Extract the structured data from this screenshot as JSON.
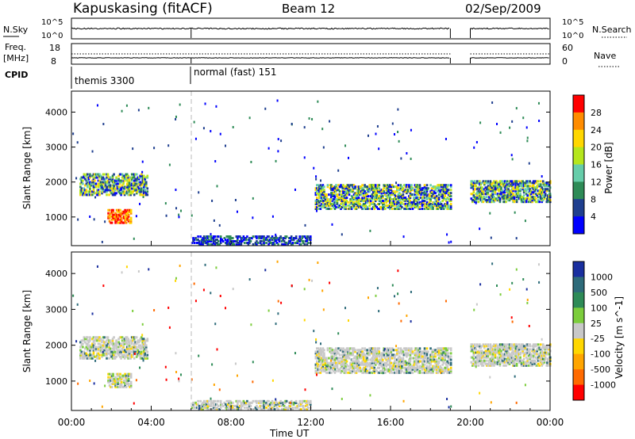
{
  "header": {
    "title": "Kapuskasing (fitACF)",
    "beam": "Beam 12",
    "date": "02/Sep/2009"
  },
  "top_panels": {
    "nsky_label": "N.Sky",
    "nsearch_label": "N.Search",
    "nsky_ticks": [
      "10^5",
      "10^0"
    ],
    "nsearch_ticks": [
      "10^5",
      "10^0"
    ],
    "freq_label_1": "Freq.",
    "freq_label_2": "[MHz]",
    "freq_ticks": [
      "18",
      "8"
    ],
    "nave_label": "Nave",
    "nave_ticks": [
      "60",
      "0"
    ],
    "cpid_label": "CPID",
    "cpid_segments": [
      {
        "label": "themis 3300",
        "start_hour": 0,
        "end_hour": 6
      },
      {
        "label": "normal (fast) 151",
        "start_hour": 6,
        "end_hour": 19
      }
    ],
    "data_gap_hours": [
      19,
      20
    ]
  },
  "chart_data": [
    {
      "type": "heatmap",
      "name": "power",
      "ylabel": "Slant Range [km]",
      "yticks": [
        1000,
        2000,
        3000,
        4000
      ],
      "ylim": [
        180,
        4600
      ],
      "xlim": [
        0,
        24
      ],
      "colorbar_label": "Power [dB]",
      "colorbar_ticks": [
        "4",
        "8",
        "12",
        "16",
        "20",
        "24",
        "28"
      ],
      "colors": [
        "#0000ff",
        "#1f3f8f",
        "#2e8b57",
        "#66cdaa",
        "#b5e61d",
        "#ffd700",
        "#ff8c00",
        "#ff0000"
      ],
      "regions": [
        {
          "t0": 0.4,
          "t1": 3.8,
          "r0": 1600,
          "r1": 2200,
          "level": "mid"
        },
        {
          "t0": 1.8,
          "t1": 3.0,
          "r0": 800,
          "r1": 1200,
          "level": "high"
        },
        {
          "t0": 12.2,
          "t1": 19.0,
          "r0": 1200,
          "r1": 1900,
          "level": "mid"
        },
        {
          "t0": 20.0,
          "t1": 24.0,
          "r0": 1400,
          "r1": 2000,
          "level": "mid"
        },
        {
          "t0": 6.0,
          "t1": 12.0,
          "r0": 180,
          "r1": 450,
          "level": "low"
        }
      ]
    },
    {
      "type": "heatmap",
      "name": "velocity",
      "ylabel": "Slant Range [km]",
      "yticks": [
        1000,
        2000,
        3000,
        4000
      ],
      "ylim": [
        180,
        4600
      ],
      "xlim": [
        0,
        24
      ],
      "xticks": [
        "00:00",
        "04:00",
        "08:00",
        "12:00",
        "16:00",
        "20:00",
        "00:00"
      ],
      "xlabel": "Time UT",
      "colorbar_label": "Velocity [m s^-1]",
      "colorbar_ticks": [
        "1000",
        "500",
        "100",
        "25",
        "-25",
        "-100",
        "-500",
        "-1000"
      ],
      "colors": [
        "#1a2f9f",
        "#2e6b7a",
        "#2e8b57",
        "#7ccd3c",
        "#c8c8c8",
        "#ffd700",
        "#ffa500",
        "#ff6a00",
        "#ff0000"
      ]
    }
  ]
}
